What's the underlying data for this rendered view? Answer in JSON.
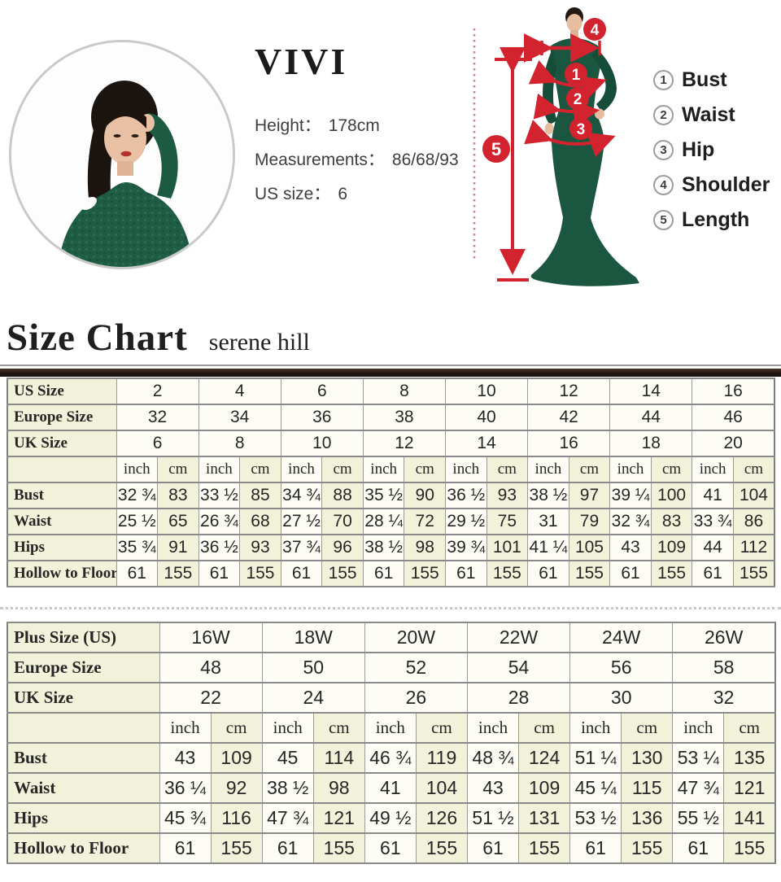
{
  "model_info": {
    "brand": "VIVI",
    "lines": [
      {
        "label": "Height：",
        "value": "178cm"
      },
      {
        "label": "Measurements：",
        "value": "86/68/93"
      },
      {
        "label": "US size：",
        "value": "6"
      }
    ]
  },
  "figure": {
    "markers": [
      "1",
      "2",
      "3",
      "4",
      "5"
    ]
  },
  "legend": {
    "items": [
      {
        "marker": "1",
        "label": "Bust"
      },
      {
        "marker": "2",
        "label": "Waist"
      },
      {
        "marker": "3",
        "label": "Hip"
      },
      {
        "marker": "4",
        "label": "Shoulder"
      },
      {
        "marker": "5",
        "label": "Length"
      }
    ]
  },
  "heading": {
    "title": "Size Chart",
    "subtitle": "serene hill"
  },
  "colors": {
    "annotation_red": "#d2232e",
    "dress_green": "#1b5740",
    "cell_cream": "#f2f2da",
    "divider_brown": "#241510"
  },
  "tables": {
    "standard": {
      "header_rows": [
        {
          "label": "US Size",
          "values": [
            "2",
            "4",
            "6",
            "8",
            "10",
            "12",
            "14",
            "16"
          ]
        },
        {
          "label": "Europe Size",
          "values": [
            "32",
            "34",
            "36",
            "38",
            "40",
            "42",
            "44",
            "46"
          ]
        },
        {
          "label": "UK Size",
          "values": [
            "6",
            "8",
            "10",
            "12",
            "14",
            "16",
            "18",
            "20"
          ]
        }
      ],
      "units": {
        "inch": "inch",
        "cm": "cm"
      },
      "rows": [
        {
          "label": "Bust",
          "inch": [
            "32 ¾",
            "33 ½",
            "34 ¾",
            "35 ½",
            "36 ½",
            "38 ½",
            "39 ¼",
            "41"
          ],
          "cm": [
            "83",
            "85",
            "88",
            "90",
            "93",
            "97",
            "100",
            "104"
          ]
        },
        {
          "label": "Waist",
          "inch": [
            "25 ½",
            "26 ¾",
            "27 ½",
            "28 ¼",
            "29 ½",
            "31",
            "32 ¾",
            "33 ¾"
          ],
          "cm": [
            "65",
            "68",
            "70",
            "72",
            "75",
            "79",
            "83",
            "86"
          ]
        },
        {
          "label": "Hips",
          "inch": [
            "35 ¾",
            "36 ½",
            "37 ¾",
            "38 ½",
            "39 ¾",
            "41 ¼",
            "43",
            "44"
          ],
          "cm": [
            "91",
            "93",
            "96",
            "98",
            "101",
            "105",
            "109",
            "112"
          ]
        },
        {
          "label": "Hollow to Floor",
          "inch": [
            "61",
            "61",
            "61",
            "61",
            "61",
            "61",
            "61",
            "61"
          ],
          "cm": [
            "155",
            "155",
            "155",
            "155",
            "155",
            "155",
            "155",
            "155"
          ]
        }
      ]
    },
    "plus": {
      "header_rows": [
        {
          "label": "Plus Size (US)",
          "values": [
            "16W",
            "18W",
            "20W",
            "22W",
            "24W",
            "26W"
          ]
        },
        {
          "label": "Europe Size",
          "values": [
            "48",
            "50",
            "52",
            "54",
            "56",
            "58"
          ]
        },
        {
          "label": "UK Size",
          "values": [
            "22",
            "24",
            "26",
            "28",
            "30",
            "32"
          ]
        }
      ],
      "units": {
        "inch": "inch",
        "cm": "cm"
      },
      "rows": [
        {
          "label": "Bust",
          "inch": [
            "43",
            "45",
            "46 ¾",
            "48 ¾",
            "51 ¼",
            "53 ¼"
          ],
          "cm": [
            "109",
            "114",
            "119",
            "124",
            "130",
            "135"
          ]
        },
        {
          "label": "Waist",
          "inch": [
            "36 ¼",
            "38 ½",
            "41",
            "43",
            "45 ¼",
            "47 ¾"
          ],
          "cm": [
            "92",
            "98",
            "104",
            "109",
            "115",
            "121"
          ]
        },
        {
          "label": "Hips",
          "inch": [
            "45 ¾",
            "47 ¾",
            "49 ½",
            "51 ½",
            "53 ½",
            "55 ½"
          ],
          "cm": [
            "116",
            "121",
            "126",
            "131",
            "136",
            "141"
          ]
        },
        {
          "label": "Hollow to Floor",
          "inch": [
            "61",
            "61",
            "61",
            "61",
            "61",
            "61"
          ],
          "cm": [
            "155",
            "155",
            "155",
            "155",
            "155",
            "155"
          ]
        }
      ]
    }
  }
}
